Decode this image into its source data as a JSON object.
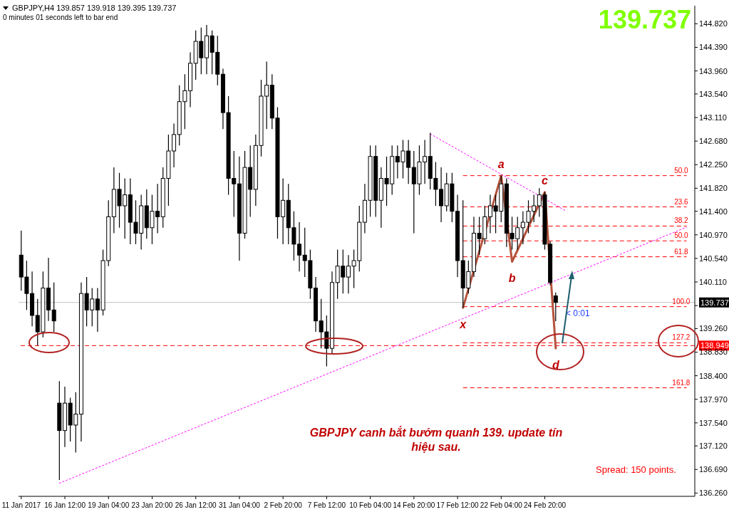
{
  "chart_data": {
    "type": "candlestick",
    "title": "GBPJPY,H4  139.857 139.918 139.395 139.737",
    "subtitle": "0 minutes 01 seconds left to bar end",
    "categories": [
      "11 Jan 2017",
      null,
      null,
      null,
      null,
      null,
      null,
      null,
      "16 Jan 12:00",
      null,
      null,
      null,
      null,
      null,
      null,
      null,
      "19 Jan 04:00",
      null,
      null,
      null,
      null,
      null,
      null,
      null,
      "23 Jan 20:00",
      null,
      null,
      null,
      null,
      null,
      null,
      null,
      "26 Jan 12:00",
      null,
      null,
      null,
      null,
      null,
      null,
      null,
      "31 Jan 04:00",
      null,
      null,
      null,
      null,
      null,
      null,
      null,
      "2 Feb 20:00",
      null,
      null,
      null,
      null,
      null,
      null,
      null,
      "7 Feb 12:00",
      null,
      null,
      null,
      null,
      null,
      null,
      null,
      "10 Feb 04:00",
      null,
      null,
      null,
      null,
      null,
      null,
      null,
      "14 Feb 20:00",
      null,
      null,
      null,
      null,
      null,
      null,
      null,
      "17 Feb 12:00",
      null,
      null,
      null,
      null,
      null,
      null,
      null,
      "22 Feb 04:00",
      null,
      null,
      null,
      null,
      null,
      null,
      null,
      "24 Feb 20:00",
      null,
      null,
      null,
      null,
      null,
      null,
      null,
      null,
      null,
      null,
      null,
      null,
      null,
      null,
      null,
      null,
      null,
      null,
      null,
      null,
      null,
      null,
      null,
      null,
      null,
      null,
      null
    ],
    "color": "#000000",
    "ohlc": [
      [
        140.6,
        141.05,
        139.95,
        140.2
      ],
      [
        140.2,
        140.5,
        139.6,
        139.9
      ],
      [
        139.9,
        140.3,
        139.3,
        139.5
      ],
      [
        139.5,
        139.8,
        138.95,
        139.2
      ],
      [
        139.2,
        140.3,
        139.1,
        140.0
      ],
      [
        140.0,
        140.55,
        139.4,
        139.6
      ],
      [
        139.6,
        140.1,
        139.2,
        139.4
      ],
      [
        137.9,
        138.3,
        136.5,
        137.4
      ],
      [
        137.4,
        138.2,
        137.1,
        137.9
      ],
      [
        137.9,
        138.0,
        137.2,
        137.5
      ],
      [
        137.5,
        138.1,
        137.0,
        137.7
      ],
      [
        137.7,
        140.1,
        137.2,
        139.9
      ],
      [
        139.9,
        140.2,
        139.3,
        139.6
      ],
      [
        139.6,
        140.0,
        139.3,
        139.8
      ],
      [
        139.8,
        140.0,
        139.2,
        139.6
      ],
      [
        139.6,
        140.7,
        139.5,
        140.5
      ],
      [
        140.5,
        141.6,
        140.4,
        141.3
      ],
      [
        141.3,
        142.2,
        141.0,
        141.8
      ],
      [
        141.8,
        142.1,
        141.1,
        141.5
      ],
      [
        141.5,
        142.0,
        140.9,
        141.7
      ],
      [
        141.7,
        142.0,
        140.8,
        141.2
      ],
      [
        141.2,
        141.6,
        140.8,
        141.0
      ],
      [
        141.0,
        141.7,
        140.7,
        141.5
      ],
      [
        141.5,
        141.8,
        140.9,
        141.1
      ],
      [
        141.1,
        141.7,
        140.8,
        141.4
      ],
      [
        141.4,
        141.9,
        141.0,
        141.3
      ],
      [
        141.3,
        142.2,
        141.1,
        142.0
      ],
      [
        142.0,
        142.8,
        141.5,
        142.5
      ],
      [
        142.5,
        143.0,
        142.2,
        142.8
      ],
      [
        142.8,
        143.7,
        142.6,
        143.4
      ],
      [
        143.4,
        143.9,
        142.9,
        143.6
      ],
      [
        143.6,
        144.3,
        143.3,
        144.1
      ],
      [
        144.1,
        144.7,
        143.8,
        144.5
      ],
      [
        144.5,
        144.75,
        143.9,
        144.2
      ],
      [
        144.2,
        144.8,
        143.9,
        144.6
      ],
      [
        144.6,
        144.7,
        143.9,
        144.3
      ],
      [
        144.3,
        144.6,
        143.7,
        143.9
      ],
      [
        143.9,
        144.0,
        142.9,
        143.2
      ],
      [
        143.2,
        143.5,
        141.7,
        142.0
      ],
      [
        142.0,
        142.5,
        141.3,
        141.9
      ],
      [
        141.9,
        142.4,
        140.5,
        141.0
      ],
      [
        141.0,
        142.5,
        140.9,
        142.2
      ],
      [
        142.2,
        142.6,
        141.3,
        141.8
      ],
      [
        141.8,
        142.8,
        141.5,
        142.6
      ],
      [
        142.6,
        143.8,
        142.4,
        143.5
      ],
      [
        143.5,
        144.13,
        142.9,
        143.7
      ],
      [
        143.7,
        143.9,
        142.9,
        143.1
      ],
      [
        143.1,
        143.3,
        140.9,
        141.3
      ],
      [
        141.3,
        142.0,
        140.8,
        141.6
      ],
      [
        141.6,
        141.9,
        140.8,
        141.1
      ],
      [
        141.1,
        141.4,
        140.5,
        140.8
      ],
      [
        140.8,
        141.2,
        140.3,
        140.6
      ],
      [
        140.6,
        141.1,
        140.2,
        140.5
      ],
      [
        140.5,
        140.7,
        139.8,
        140.0
      ],
      [
        140.0,
        140.2,
        139.2,
        139.4
      ],
      [
        139.4,
        139.8,
        138.9,
        139.2
      ],
      [
        139.2,
        139.5,
        138.57,
        138.9
      ],
      [
        138.9,
        140.3,
        138.8,
        140.1
      ],
      [
        140.1,
        140.7,
        139.8,
        140.4
      ],
      [
        140.4,
        140.7,
        139.9,
        140.2
      ],
      [
        140.2,
        140.6,
        139.9,
        140.4
      ],
      [
        140.4,
        140.7,
        140.0,
        140.5
      ],
      [
        140.5,
        141.5,
        140.3,
        141.2
      ],
      [
        141.2,
        141.9,
        141.0,
        141.6
      ],
      [
        141.6,
        142.6,
        141.3,
        142.4
      ],
      [
        142.4,
        142.6,
        141.3,
        141.6
      ],
      [
        141.6,
        142.2,
        141.1,
        142.0
      ],
      [
        142.0,
        142.4,
        141.5,
        141.9
      ],
      [
        141.9,
        142.6,
        141.7,
        142.4
      ],
      [
        142.4,
        142.6,
        142.0,
        142.3
      ],
      [
        142.3,
        142.7,
        142.0,
        142.5
      ],
      [
        142.5,
        142.7,
        141.9,
        142.2
      ],
      [
        142.2,
        142.5,
        141.0,
        141.9
      ],
      [
        141.9,
        142.6,
        141.7,
        142.3
      ],
      [
        142.3,
        142.7,
        141.9,
        142.4
      ],
      [
        142.4,
        142.83,
        141.8,
        142.0
      ],
      [
        142.0,
        142.3,
        141.5,
        141.8
      ],
      [
        141.8,
        142.2,
        141.2,
        141.5
      ],
      [
        141.5,
        142.1,
        141.4,
        141.9
      ],
      [
        141.9,
        142.1,
        141.2,
        141.4
      ],
      [
        141.4,
        141.7,
        140.2,
        140.5
      ],
      [
        140.5,
        141.6,
        139.64,
        140.0
      ],
      [
        140.0,
        140.5,
        139.9,
        140.3
      ],
      [
        140.3,
        141.3,
        140.2,
        141.0
      ],
      [
        141.0,
        141.3,
        140.6,
        140.9
      ],
      [
        140.9,
        141.5,
        140.8,
        141.3
      ],
      [
        141.3,
        141.7,
        141.0,
        141.5
      ],
      [
        141.5,
        141.7,
        141.0,
        141.4
      ],
      [
        141.4,
        142.05,
        141.2,
        141.9
      ],
      [
        141.9,
        142.0,
        140.75,
        141.0
      ],
      [
        141.0,
        141.3,
        140.7,
        140.9
      ],
      [
        140.9,
        141.3,
        140.7,
        141.1
      ],
      [
        141.1,
        141.4,
        140.8,
        141.2
      ],
      [
        141.2,
        141.6,
        141.0,
        141.4
      ],
      [
        141.4,
        141.7,
        141.2,
        141.5
      ],
      [
        141.5,
        141.82,
        141.3,
        141.7
      ],
      [
        141.7,
        141.75,
        140.7,
        140.8
      ],
      [
        140.8,
        140.85,
        140.05,
        140.1
      ],
      [
        139.857,
        139.918,
        139.395,
        139.737
      ],
      null,
      null,
      null,
      null,
      null,
      null,
      null,
      null,
      null,
      null,
      null,
      null,
      null,
      null,
      null,
      null,
      null,
      null,
      null,
      null,
      null,
      null,
      null,
      null,
      null
    ],
    "series": [
      {
        "type": "line",
        "color": "#b5533c",
        "line_style": "solid",
        "values": [
          null,
          null,
          null,
          null,
          null,
          null,
          null,
          null,
          null,
          null,
          null,
          null,
          null,
          null,
          null,
          null,
          null,
          null,
          null,
          null,
          null,
          null,
          null,
          null,
          null,
          null,
          null,
          null,
          null,
          null,
          null,
          null,
          null,
          null,
          null,
          null,
          null,
          null,
          null,
          null,
          null,
          null,
          null,
          null,
          null,
          null,
          null,
          null,
          null,
          null,
          null,
          null,
          null,
          null,
          null,
          null,
          null,
          null,
          null,
          null,
          null,
          null,
          null,
          null,
          null,
          null,
          null,
          null,
          null,
          null,
          null,
          null,
          null,
          null,
          null,
          null,
          null,
          null,
          null,
          null,
          null,
          139.64,
          null,
          null,
          null,
          null,
          null,
          null,
          142.05,
          null,
          140.48,
          null,
          null,
          null,
          null,
          null,
          141.75,
          null,
          138.9,
          null,
          null,
          null,
          null,
          null,
          null,
          null,
          null,
          null,
          null,
          null,
          null,
          null,
          null,
          null,
          null,
          null,
          null,
          null,
          null,
          null,
          null,
          null,
          null,
          null
        ]
      },
      {
        "type": "line",
        "color": "#ff00ff",
        "line_style": "dotted",
        "values": [
          null,
          null,
          null,
          null,
          null,
          null,
          null,
          136.44,
          null,
          null,
          null,
          null,
          null,
          null,
          null,
          null,
          null,
          null,
          null,
          null,
          null,
          null,
          null,
          null,
          null,
          null,
          null,
          null,
          null,
          null,
          null,
          null,
          null,
          null,
          null,
          null,
          null,
          null,
          null,
          null,
          null,
          null,
          null,
          null,
          null,
          null,
          null,
          null,
          null,
          null,
          null,
          null,
          null,
          null,
          null,
          null,
          null,
          null,
          null,
          null,
          null,
          null,
          null,
          null,
          null,
          null,
          null,
          null,
          null,
          null,
          null,
          null,
          null,
          null,
          null,
          null,
          null,
          null,
          null,
          null,
          null,
          null,
          null,
          null,
          null,
          null,
          null,
          null,
          null,
          null,
          null,
          null,
          null,
          null,
          null,
          null,
          null,
          null,
          null,
          null,
          null,
          null,
          null,
          null,
          null,
          null,
          null,
          null,
          null,
          null,
          null,
          null,
          null,
          null,
          null,
          null,
          null,
          null,
          null,
          null,
          null,
          null,
          141.11,
          null
        ]
      },
      {
        "type": "line",
        "color": "#ff00ff",
        "line_style": "dotted",
        "values": [
          null,
          null,
          null,
          null,
          null,
          null,
          null,
          null,
          null,
          null,
          null,
          null,
          null,
          null,
          null,
          null,
          null,
          null,
          null,
          null,
          null,
          null,
          null,
          null,
          null,
          null,
          null,
          null,
          null,
          null,
          null,
          null,
          null,
          null,
          null,
          null,
          null,
          null,
          null,
          null,
          null,
          null,
          null,
          null,
          null,
          null,
          null,
          null,
          null,
          null,
          null,
          null,
          null,
          null,
          null,
          null,
          null,
          null,
          null,
          null,
          null,
          null,
          null,
          null,
          null,
          null,
          null,
          null,
          null,
          null,
          null,
          null,
          null,
          null,
          null,
          142.81,
          null,
          null,
          null,
          null,
          null,
          null,
          null,
          null,
          null,
          null,
          null,
          null,
          null,
          null,
          null,
          null,
          null,
          null,
          null,
          null,
          null,
          null,
          null,
          null,
          141.4,
          null,
          null,
          null,
          null,
          null,
          null,
          null,
          null,
          null,
          null,
          null,
          null,
          null,
          null,
          null,
          null,
          null,
          null,
          null,
          null,
          null,
          null,
          null
        ]
      }
    ],
    "ylim": [
      136.2,
      145.15
    ],
    "yticks": [
      {
        "value": 136.26,
        "label": "136.260"
      },
      {
        "value": 136.69,
        "label": "136.690"
      },
      {
        "value": 137.12,
        "label": "137.120"
      },
      {
        "value": 137.54,
        "label": "137.540"
      },
      {
        "value": 137.97,
        "label": "137.970"
      },
      {
        "value": 138.4,
        "label": "138.400"
      },
      {
        "value": 138.83,
        "label": "138.830"
      },
      {
        "value": 139.26,
        "label": "139.260"
      },
      {
        "value": 139.68,
        "label": null
      },
      {
        "value": 140.11,
        "label": "140.110"
      },
      {
        "value": 140.54,
        "label": "140.540"
      },
      {
        "value": 140.97,
        "label": "140.970"
      },
      {
        "value": 141.4,
        "label": "141.400"
      },
      {
        "value": 141.82,
        "label": "141.820"
      },
      {
        "value": 142.25,
        "label": "142.250"
      },
      {
        "value": 142.68,
        "label": "142.680"
      },
      {
        "value": 143.11,
        "label": "143.110"
      },
      {
        "value": 143.54,
        "label": "143.540"
      },
      {
        "value": 143.96,
        "label": "143.960"
      },
      {
        "value": 144.39,
        "label": "144.390"
      },
      {
        "value": 144.82,
        "label": "144.820"
      }
    ],
    "ref_lines": [
      {
        "axis": "y",
        "value": 142.05,
        "color": "#ff0000",
        "line_style": "dashed"
      },
      {
        "axis": "y",
        "value": 141.48,
        "color": "#ff0000",
        "line_style": "dashed"
      },
      {
        "axis": "y",
        "value": 141.13,
        "color": "#ff0000",
        "line_style": "dashed"
      },
      {
        "axis": "y",
        "value": 140.86,
        "color": "#ff0000",
        "line_style": "dashed"
      },
      {
        "axis": "y",
        "value": 140.57,
        "color": "#ff0000",
        "line_style": "dashed"
      },
      {
        "axis": "y",
        "value": 139.66,
        "color": "#ff0000",
        "line_style": "dashed"
      },
      {
        "axis": "y",
        "value": 139.0,
        "color": "#ff0000",
        "line_style": "dashed"
      },
      {
        "axis": "y",
        "value": 138.18,
        "color": "#ff0000",
        "line_style": "dashed"
      },
      {
        "axis": "y",
        "value": 139.737,
        "label": "139.737",
        "color": "#c0c0c0",
        "line_style": "solid"
      },
      {
        "axis": "y",
        "value": 138.949,
        "label": "138.949",
        "color": "#ff0000",
        "line_style": "dashed"
      }
    ],
    "annotations": [
      "139.737",
      "GBPJPY canh bắt bướm quanh 139. update tín hiệu sau.",
      "Spread: 150 points.",
      "< 0:01",
      {
        "text": "x",
        "y": 139.64
      },
      {
        "text": "a",
        "y": 142.05
      },
      {
        "text": "b",
        "y": 140.48
      },
      {
        "text": "c",
        "y": 141.75
      },
      {
        "text": "d",
        "y": 138.9
      },
      {
        "text": "50.0",
        "y": 142.05
      },
      {
        "text": "23.6",
        "y": 141.48
      },
      {
        "text": "38.2",
        "y": 141.13
      },
      {
        "text": "50.0",
        "y": 140.86
      },
      {
        "text": "61.8",
        "y": 140.57
      },
      {
        "text": "100.0",
        "y": 139.66
      },
      {
        "text": "127.2",
        "y": 139.0
      },
      {
        "text": "161.8",
        "y": 138.18
      }
    ]
  }
}
